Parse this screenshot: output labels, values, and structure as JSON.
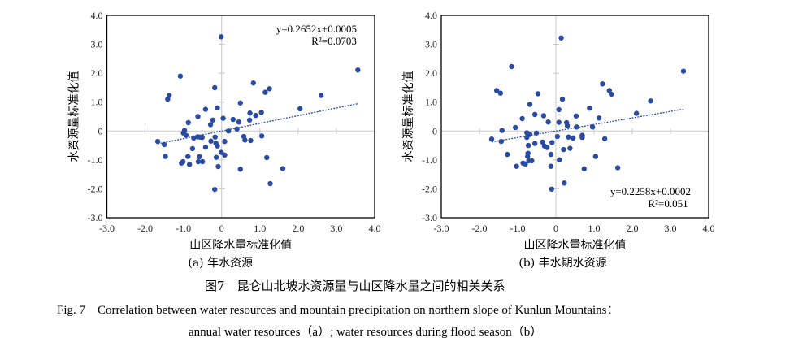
{
  "chart_data": [
    {
      "type": "scatter",
      "subtitle": "(a) 年水资源",
      "xlabel": "山区降水量标准化值",
      "ylabel": "水资源量标准化值",
      "xlim": [
        -3.0,
        4.0
      ],
      "ylim": [
        -3.0,
        4.0
      ],
      "xticks": [
        "-3.0",
        "-2.0",
        "-1.0",
        "0",
        "1.0",
        "2.0",
        "3.0",
        "4.0"
      ],
      "yticks": [
        "-3.0",
        "-2.0",
        "-1.0",
        "0",
        "1.0",
        "2.0",
        "3.0",
        "4.0"
      ],
      "equation": "y=0.2652x+0.0005",
      "r2": "R²=0.0703",
      "annotation_position": "top-right",
      "trendline": {
        "slope": 0.2652,
        "intercept": 0.0005,
        "x_range": [
          -1.67,
          3.56
        ],
        "style": "dotted"
      },
      "color": "#2b4ba0",
      "points": [
        [
          -0.01,
          3.26
        ],
        [
          3.56,
          2.11
        ],
        [
          -1.08,
          1.9
        ],
        [
          0.83,
          1.66
        ],
        [
          -0.18,
          1.5
        ],
        [
          1.25,
          1.46
        ],
        [
          1.14,
          1.34
        ],
        [
          2.6,
          1.23
        ],
        [
          -1.37,
          1.23
        ],
        [
          -1.41,
          1.1
        ],
        [
          0.49,
          0.97
        ],
        [
          2.05,
          0.77
        ],
        [
          -0.11,
          0.8
        ],
        [
          -0.42,
          0.75
        ],
        [
          1.04,
          0.64
        ],
        [
          0.74,
          0.62
        ],
        [
          0.89,
          0.54
        ],
        [
          -0.62,
          0.5
        ],
        [
          0.04,
          0.44
        ],
        [
          0.3,
          0.4
        ],
        [
          0.73,
          0.38
        ],
        [
          -0.23,
          0.38
        ],
        [
          0.45,
          0.31
        ],
        [
          -0.87,
          0.29
        ],
        [
          -0.29,
          0.22
        ],
        [
          0.4,
          0.07
        ],
        [
          -0.97,
          0.02
        ],
        [
          0.18,
          0.0
        ],
        [
          -1.0,
          -0.07
        ],
        [
          -0.93,
          -0.15
        ],
        [
          -0.63,
          -0.2
        ],
        [
          -0.56,
          -0.21
        ],
        [
          -0.51,
          -0.22
        ],
        [
          -0.73,
          -0.24
        ],
        [
          -0.17,
          -0.21
        ],
        [
          1.05,
          -0.17
        ],
        [
          0.58,
          -0.19
        ],
        [
          0.61,
          -0.31
        ],
        [
          0.76,
          -0.33
        ],
        [
          -1.67,
          -0.36
        ],
        [
          -0.28,
          -0.35
        ],
        [
          0.08,
          -0.36
        ],
        [
          -0.15,
          -0.42
        ],
        [
          -1.5,
          -0.47
        ],
        [
          -0.11,
          -0.52
        ],
        [
          -0.42,
          -0.56
        ],
        [
          -0.76,
          -0.61
        ],
        [
          -0.01,
          -0.74
        ],
        [
          0.08,
          -0.83
        ],
        [
          -1.47,
          -0.88
        ],
        [
          -0.88,
          -0.88
        ],
        [
          -0.58,
          -0.89
        ],
        [
          -0.14,
          -0.91
        ],
        [
          1.18,
          -0.92
        ],
        [
          -1.01,
          -1.06
        ],
        [
          -1.05,
          -1.11
        ],
        [
          -0.61,
          -1.06
        ],
        [
          -0.5,
          -1.06
        ],
        [
          -0.84,
          -1.16
        ],
        [
          -0.09,
          -1.23
        ],
        [
          0.49,
          -1.32
        ],
        [
          1.6,
          -1.3
        ],
        [
          1.27,
          -1.82
        ],
        [
          -0.18,
          -2.02
        ]
      ]
    },
    {
      "type": "scatter",
      "subtitle": "(b) 丰水期水资源",
      "xlabel": "山区降水量标准化值",
      "ylabel": "水资源量标准化值",
      "xlim": [
        -3.0,
        4.0
      ],
      "ylim": [
        -3.0,
        4.0
      ],
      "xticks": [
        "-3.0",
        "-2.0",
        "-1.0",
        "0",
        "1.0",
        "2.0",
        "3.0",
        "4.0"
      ],
      "yticks": [
        "-3.0",
        "-2.0",
        "-1.0",
        "0",
        "1.0",
        "2.0",
        "3.0",
        "4.0"
      ],
      "equation": "y=0.2258x+0.0002",
      "r2": "R²=0.051",
      "annotation_position": "bottom-right",
      "trendline": {
        "slope": 0.2258,
        "intercept": 0.0002,
        "x_range": [
          -1.68,
          3.34
        ],
        "style": "dotted"
      },
      "color": "#2b4ba0",
      "points": [
        [
          0.14,
          3.22
        ],
        [
          3.34,
          2.07
        ],
        [
          -1.16,
          2.23
        ],
        [
          -1.55,
          1.4
        ],
        [
          -1.45,
          1.31
        ],
        [
          1.22,
          1.63
        ],
        [
          1.4,
          1.4
        ],
        [
          1.45,
          1.27
        ],
        [
          -0.47,
          1.29
        ],
        [
          0.17,
          1.1
        ],
        [
          2.48,
          1.04
        ],
        [
          -0.68,
          0.92
        ],
        [
          0.88,
          0.79
        ],
        [
          0.08,
          0.74
        ],
        [
          2.11,
          0.61
        ],
        [
          -0.55,
          0.57
        ],
        [
          -0.32,
          0.53
        ],
        [
          0.53,
          0.52
        ],
        [
          -0.88,
          0.43
        ],
        [
          1.13,
          0.45
        ],
        [
          -0.2,
          0.31
        ],
        [
          0.08,
          0.3
        ],
        [
          0.28,
          0.29
        ],
        [
          0.3,
          0.18
        ],
        [
          0.54,
          0.14
        ],
        [
          0.96,
          0.14
        ],
        [
          -1.06,
          0.12
        ],
        [
          -1.41,
          0.02
        ],
        [
          -0.76,
          -0.06
        ],
        [
          -0.51,
          -0.07
        ],
        [
          -0.68,
          -0.12
        ],
        [
          0.04,
          -0.19
        ],
        [
          0.69,
          -0.15
        ],
        [
          0.33,
          -0.21
        ],
        [
          0.69,
          -0.22
        ],
        [
          0.45,
          -0.24
        ],
        [
          -0.76,
          -0.22
        ],
        [
          -1.68,
          -0.28
        ],
        [
          1.28,
          -0.27
        ],
        [
          -1.43,
          -0.36
        ],
        [
          -0.35,
          -0.38
        ],
        [
          -0.55,
          -0.43
        ],
        [
          -0.1,
          -0.4
        ],
        [
          -0.72,
          -0.5
        ],
        [
          -0.3,
          -0.52
        ],
        [
          -0.23,
          -0.57
        ],
        [
          0.2,
          -0.64
        ],
        [
          0.37,
          -0.6
        ],
        [
          -0.73,
          -0.77
        ],
        [
          -1.27,
          -0.81
        ],
        [
          -0.13,
          -0.81
        ],
        [
          -0.74,
          -0.88
        ],
        [
          1.04,
          -0.88
        ],
        [
          -0.71,
          -1.03
        ],
        [
          -0.63,
          -1.03
        ],
        [
          0.09,
          -1.0
        ],
        [
          -0.86,
          -1.11
        ],
        [
          -0.8,
          -1.14
        ],
        [
          -1.03,
          -1.22
        ],
        [
          -0.13,
          -1.22
        ],
        [
          0.74,
          -1.31
        ],
        [
          1.62,
          -1.27
        ],
        [
          0.22,
          -1.8
        ],
        [
          -0.11,
          -2.01
        ]
      ]
    }
  ],
  "caption": {
    "cn": "图7　昆仑山北坡水资源量与山区降水量之间的相关关系",
    "en_line1": "Fig. 7　Correlation between water resources and mountain precipitation on northern slope of Kunlun Mountains：",
    "en_line2": "annual water resources（a）; water resources during flood season（b）"
  }
}
